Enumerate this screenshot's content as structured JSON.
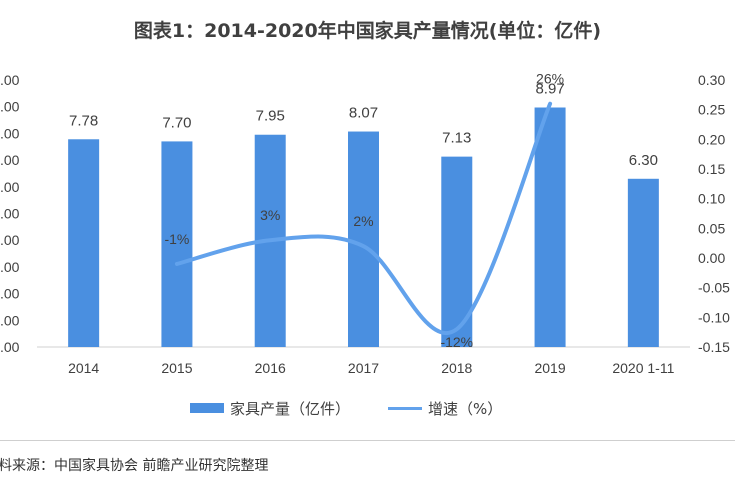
{
  "title": "图表1：2014-2020年中国家具产量情况(单位：亿件)",
  "legend": {
    "bar_label": "家具产量（亿件）",
    "line_label": "增速（%）"
  },
  "source": "料来源：中国家具协会 前瞻产业研究院整理",
  "colors": {
    "bar": "#4A8FE0",
    "line": "#62A2EC",
    "text": "#404040"
  },
  "chart_data": {
    "type": "bar",
    "title": "图表1：2014-2020年中国家具产量情况(单位：亿件)",
    "categories": [
      "2014",
      "2015",
      "2016",
      "2017",
      "2018",
      "2019",
      "2020 1-11"
    ],
    "series": [
      {
        "name": "家具产量（亿件）",
        "type": "bar",
        "axis": "left",
        "values": [
          7.78,
          7.7,
          7.95,
          8.07,
          7.13,
          8.97,
          6.3
        ],
        "labels": [
          "7.78",
          "7.70",
          "7.95",
          "8.07",
          "7.13",
          "8.97",
          "6.30"
        ]
      },
      {
        "name": "增速（%）",
        "type": "line",
        "axis": "right",
        "values": [
          null,
          -0.01,
          0.03,
          0.02,
          -0.12,
          0.26,
          null
        ],
        "labels": [
          "",
          "-1%",
          "3%",
          "2%",
          "-12%",
          "26%",
          ""
        ]
      }
    ],
    "left_axis": {
      "ylim": [
        0,
        10
      ],
      "tick_labels": [
        ".00",
        ".00",
        ".00",
        ".00",
        ".00",
        ".00",
        ".00",
        ".00",
        ".00",
        ".00",
        ".00"
      ]
    },
    "right_axis": {
      "ylim": [
        -0.15,
        0.3
      ],
      "ticks": [
        0.3,
        0.25,
        0.2,
        0.15,
        0.1,
        0.05,
        0.0,
        -0.05,
        -0.1,
        -0.15
      ],
      "tick_labels": [
        "0.30",
        "0.25",
        "0.20",
        "0.15",
        "0.10",
        "0.05",
        "0.00",
        "-0.05",
        "-0.10",
        "-0.15"
      ]
    },
    "legend_position": "bottom",
    "grid": false
  }
}
